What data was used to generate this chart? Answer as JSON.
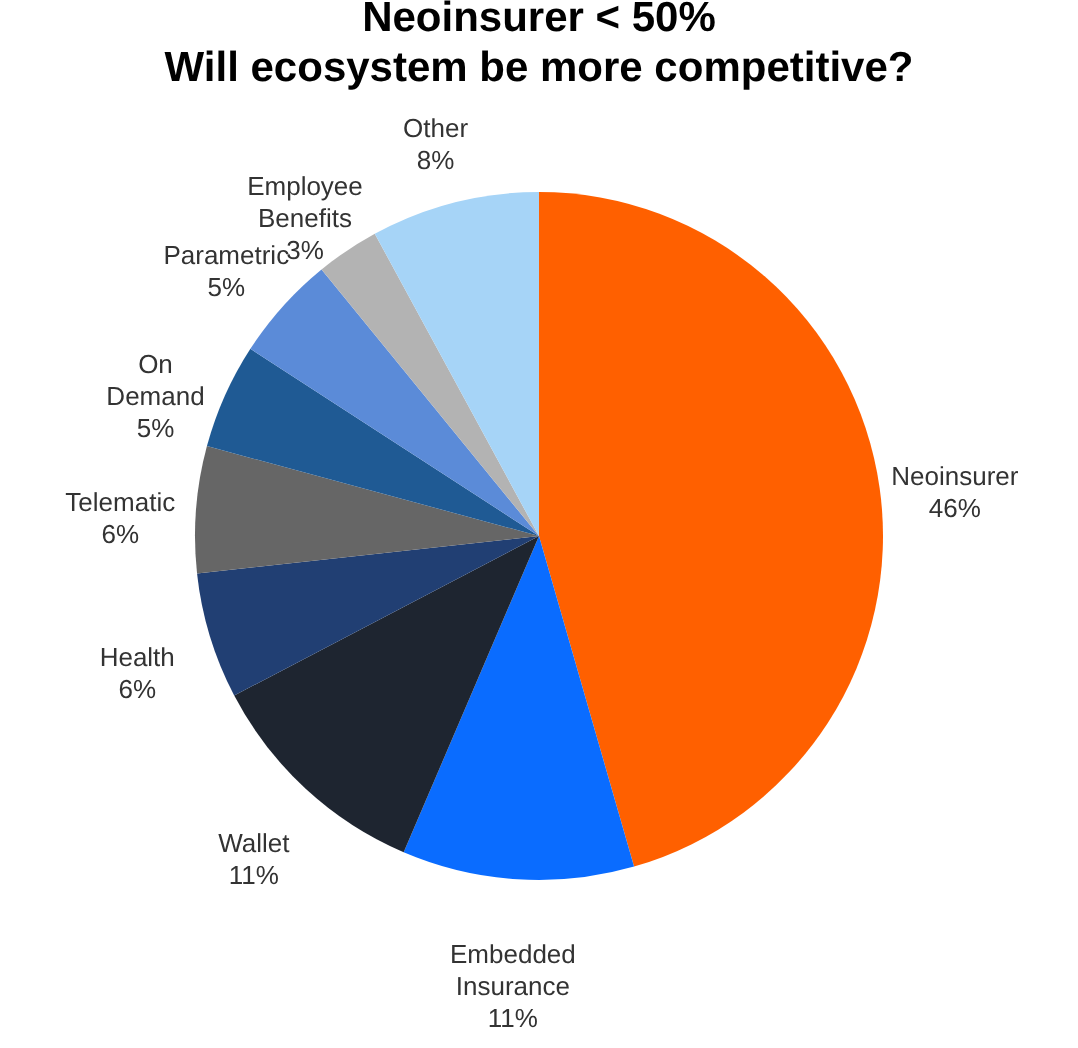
{
  "chart_data": {
    "type": "pie",
    "title": "Neoinsurer < 50%",
    "subtitle": "Will ecosystem be more competitive?",
    "categories": [
      "Neoinsurer",
      "Embedded Insurance",
      "Wallet",
      "Health",
      "Telematic",
      "On Demand",
      "Parametric",
      "Employee Benefits",
      "Other"
    ],
    "values": [
      46,
      11,
      11,
      6,
      6,
      5,
      5,
      3,
      8
    ],
    "value_labels": [
      "46%",
      "11%",
      "11%",
      "6%",
      "6%",
      "5%",
      "5%",
      "3%",
      "8%"
    ],
    "colors": [
      "#ff6000",
      "#0a6cff",
      "#1e2530",
      "#213f73",
      "#666666",
      "#1f5a94",
      "#5b8bd8",
      "#b3b3b3",
      "#a6d4f7"
    ]
  }
}
